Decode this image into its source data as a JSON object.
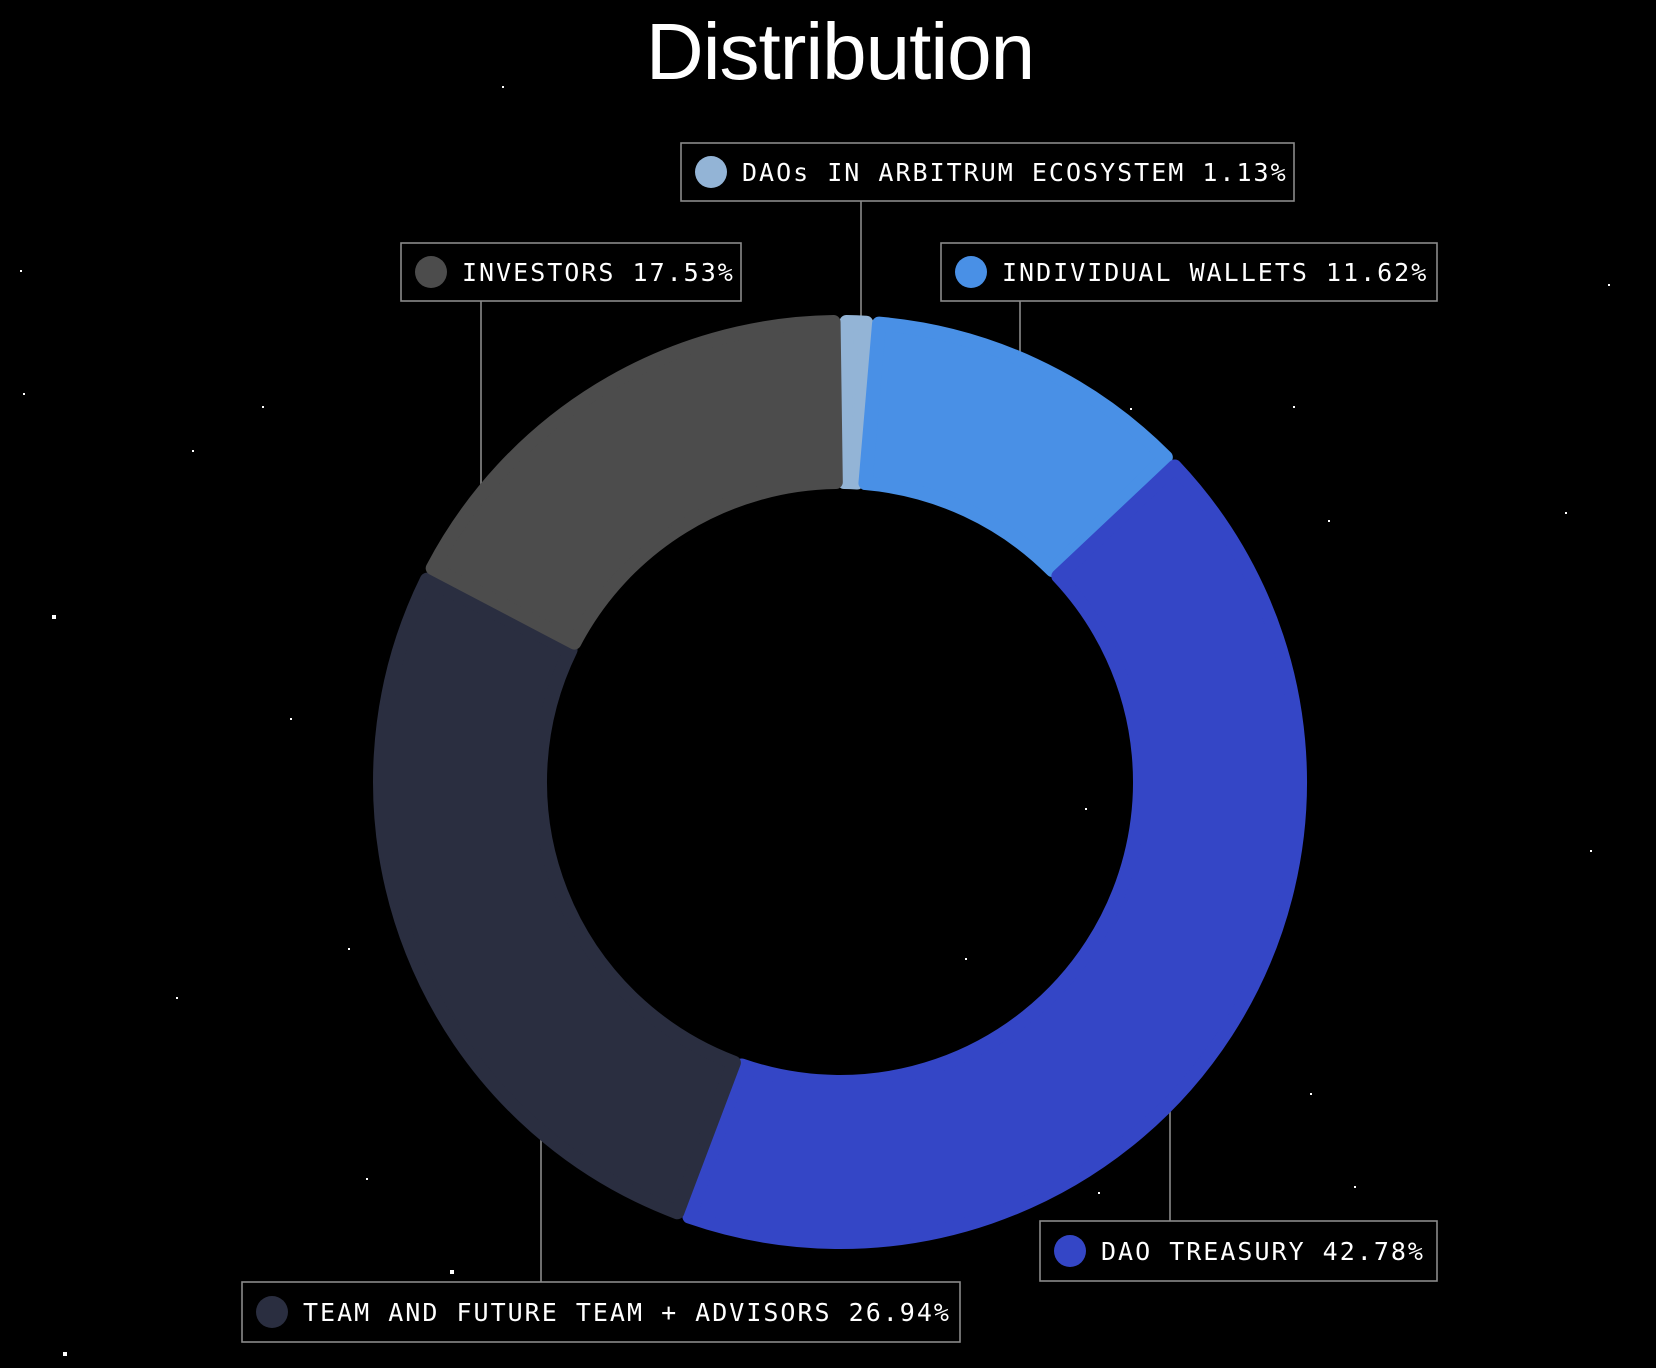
{
  "chart_data": {
    "type": "donut",
    "title": "Distribution",
    "slices": [
      {
        "label": "DAOs IN ARBITRUM ECOSYSTEM",
        "value": 1.13,
        "value_label": "1.13%",
        "color": "#93b4d6"
      },
      {
        "label": "INDIVIDUAL WALLETS",
        "value": 11.62,
        "value_label": "11.62%",
        "color": "#4990e6"
      },
      {
        "label": "DAO TREASURY",
        "value": 42.78,
        "value_label": "42.78%",
        "color": "#3446c6"
      },
      {
        "label": "TEAM AND FUTURE TEAM + ADVISORS",
        "value": 26.94,
        "value_label": "26.94%",
        "color": "#2a2e40"
      },
      {
        "label": "INVESTORS",
        "value": 17.53,
        "value_label": "17.53%",
        "color": "#4c4c4c"
      }
    ],
    "legend_placement": "callouts around ring",
    "background": "#000000"
  }
}
